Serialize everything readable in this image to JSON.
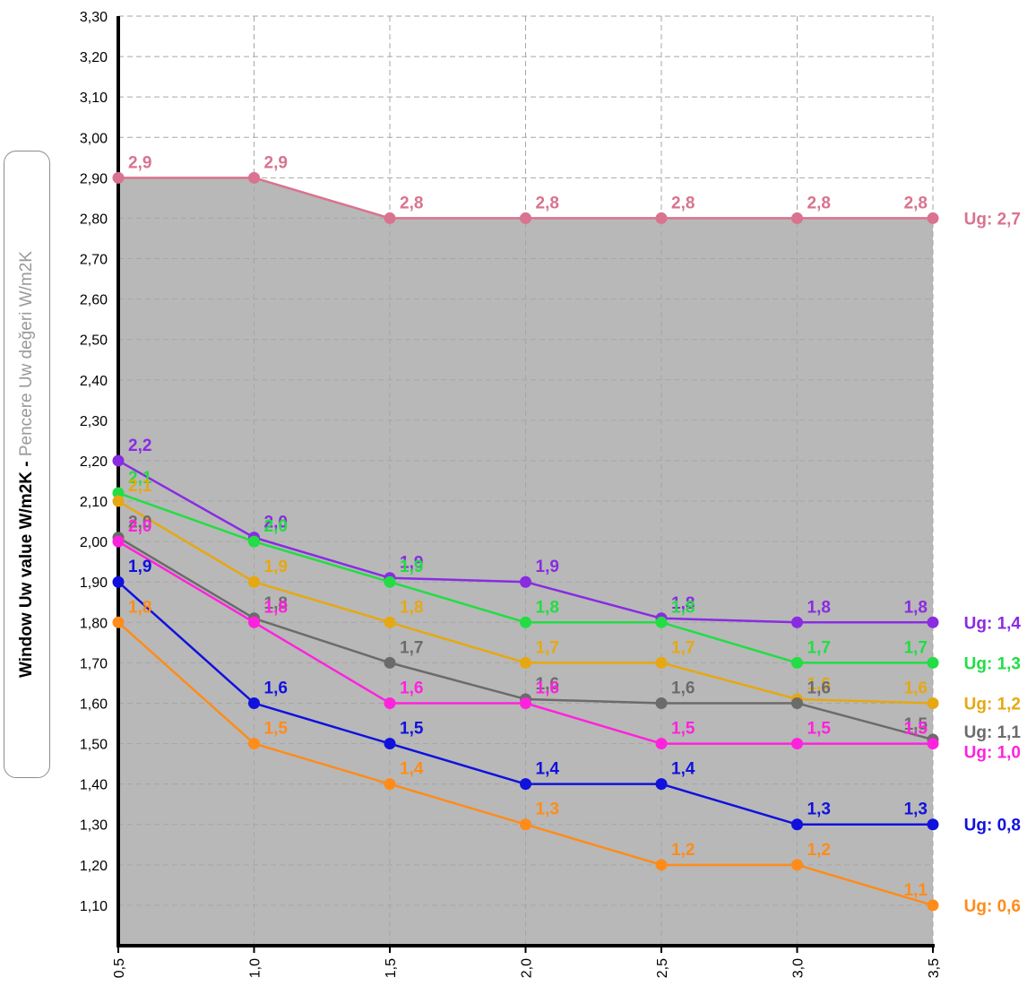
{
  "chart_data": {
    "type": "line",
    "ylabel_main": "Window Uw value W/m2K - ",
    "ylabel_sub": "Pencere Uw değeri W/m2K",
    "x": [
      0.5,
      1.0,
      1.5,
      2.0,
      2.5,
      3.0,
      3.5
    ],
    "xtick_labels": [
      "0,5",
      "1,0",
      "1,5",
      "2,0",
      "2,5",
      "3,0",
      "3,5"
    ],
    "ylim": [
      1.0,
      3.3
    ],
    "yticks": [
      1.1,
      1.2,
      1.3,
      1.4,
      1.5,
      1.6,
      1.7,
      1.8,
      1.9,
      2.0,
      2.1,
      2.2,
      2.3,
      2.4,
      2.5,
      2.6,
      2.7,
      2.8,
      2.9,
      3.0,
      3.1,
      3.2,
      3.3
    ],
    "ytick_labels": [
      "1,10",
      "1,20",
      "1,30",
      "1,40",
      "1,50",
      "1,60",
      "1,70",
      "1,80",
      "1,90",
      "2,00",
      "2,10",
      "2,20",
      "2,30",
      "2,40",
      "2,50",
      "2,60",
      "2,70",
      "2,80",
      "2,90",
      "3,00",
      "3,10",
      "3,20",
      "3,30"
    ],
    "grid": true,
    "area_fill_color": "#b8b8b8",
    "series": [
      {
        "name": "Ug: 2,7",
        "color": "#d9738f",
        "values": [
          2.9,
          2.9,
          2.8,
          2.8,
          2.8,
          2.8,
          2.8
        ],
        "labels": [
          "2,9",
          "2,9",
          "2,8",
          "2,8",
          "2,8",
          "2,8",
          "2,8"
        ]
      },
      {
        "name": "Ug: 1,4",
        "color": "#8a2be2",
        "values": [
          2.2,
          2.01,
          1.91,
          1.9,
          1.81,
          1.8,
          1.8
        ],
        "labels": [
          "2,2",
          "2,0",
          "1,9",
          "1,9",
          "1,8",
          "1,8",
          "1,8"
        ]
      },
      {
        "name": "Ug: 1,3",
        "color": "#22dd44",
        "values": [
          2.12,
          2.0,
          1.9,
          1.8,
          1.8,
          1.7,
          1.7
        ],
        "labels": [
          "2,1",
          "2,0",
          "1,9",
          "1,8",
          "1,8",
          "1,7",
          "1,7"
        ]
      },
      {
        "name": "Ug: 1,2",
        "color": "#e6a812",
        "values": [
          2.1,
          1.9,
          1.8,
          1.7,
          1.7,
          1.61,
          1.6
        ],
        "labels": [
          "2,1",
          "1,9",
          "1,8",
          "1,7",
          "1,7",
          "1,6",
          "1,6"
        ]
      },
      {
        "name": "Ug: 1,1",
        "color": "#6b6b6b",
        "values": [
          2.01,
          1.81,
          1.7,
          1.61,
          1.6,
          1.6,
          1.51
        ],
        "labels": [
          "2,0",
          "1,8",
          "1,7",
          "1,6",
          "1,6",
          "1,6",
          "1,5"
        ]
      },
      {
        "name": "Ug: 1,0",
        "color": "#ff22dd",
        "values": [
          2.0,
          1.8,
          1.6,
          1.6,
          1.5,
          1.5,
          1.5
        ],
        "labels": [
          "2,0",
          "1,8",
          "1,6",
          "1,6",
          "1,5",
          "1,5",
          "1,5"
        ]
      },
      {
        "name": "Ug: 0,8",
        "color": "#1111dd",
        "values": [
          1.9,
          1.6,
          1.5,
          1.4,
          1.4,
          1.3,
          1.3
        ],
        "labels": [
          "1,9",
          "1,6",
          "1,5",
          "1,4",
          "1,4",
          "1,3",
          "1,3"
        ]
      },
      {
        "name": "Ug: 0,6",
        "color": "#ff8c1a",
        "values": [
          1.8,
          1.5,
          1.4,
          1.3,
          1.2,
          1.2,
          1.1
        ],
        "labels": [
          "1,8",
          "1,5",
          "1,4",
          "1,3",
          "1,2",
          "1,2",
          "1,1"
        ]
      }
    ]
  }
}
